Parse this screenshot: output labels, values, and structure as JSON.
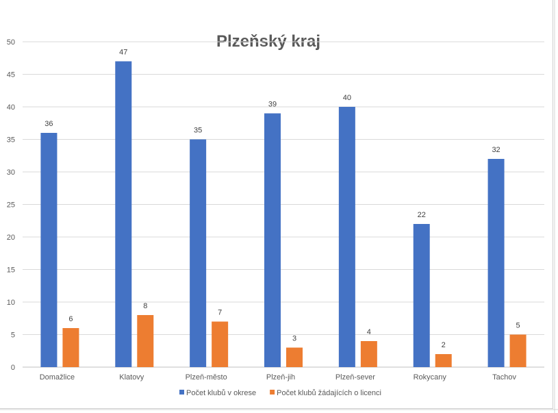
{
  "chart_data": {
    "type": "bar",
    "title": "Plzeňský kraj",
    "categories": [
      "Domažlice",
      "Klatovy",
      "Plzeň-město",
      "Plzeň-jih",
      "Plzeň-sever",
      "Rokycany",
      "Tachov"
    ],
    "series": [
      {
        "name": "Počet klubů v okrese",
        "values": [
          36,
          47,
          35,
          39,
          40,
          22,
          32
        ],
        "color": "#4472C4"
      },
      {
        "name": "Počet klubů žádajících o licenci",
        "values": [
          6,
          8,
          7,
          3,
          4,
          2,
          5
        ],
        "color": "#ED7D31"
      }
    ],
    "ylim": [
      0,
      50
    ],
    "yticks": [
      0,
      5,
      10,
      15,
      20,
      25,
      30,
      35,
      40,
      45,
      50
    ],
    "grid": true,
    "legend_position": "bottom",
    "data_labels": true
  }
}
